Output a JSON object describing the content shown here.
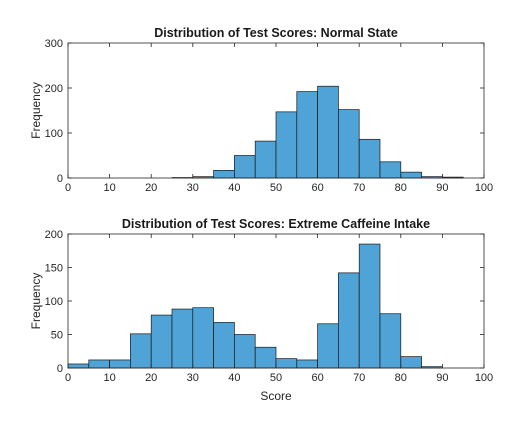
{
  "chart_data": [
    {
      "type": "bar",
      "title": "Distribution of Test Scores: Normal State",
      "xlabel": "",
      "ylabel": "Frequency",
      "xlim": [
        0,
        100
      ],
      "ylim": [
        0,
        300
      ],
      "xticks": [
        "0",
        "10",
        "20",
        "30",
        "40",
        "50",
        "60",
        "70",
        "80",
        "90",
        "100"
      ],
      "yticks": [
        "0",
        "100",
        "200",
        "300"
      ],
      "bin_width": 5,
      "bin_edges": [
        25,
        30,
        35,
        40,
        45,
        50,
        55,
        60,
        65,
        70,
        75,
        80,
        85,
        90,
        95
      ],
      "values": [
        1,
        3,
        17,
        50,
        82,
        147,
        192,
        204,
        152,
        86,
        36,
        13,
        3,
        2
      ],
      "grid": false,
      "bar_color": "#4fa3d6"
    },
    {
      "type": "bar",
      "title": "Distribution of Test Scores: Extreme Caffeine Intake",
      "xlabel": "Score",
      "ylabel": "Frequency",
      "xlim": [
        0,
        100
      ],
      "ylim": [
        0,
        200
      ],
      "xticks": [
        "0",
        "10",
        "20",
        "30",
        "40",
        "50",
        "60",
        "70",
        "80",
        "90",
        "100"
      ],
      "yticks": [
        "0",
        "50",
        "100",
        "150",
        "200"
      ],
      "bin_width": 5,
      "bin_edges": [
        0,
        5,
        10,
        15,
        20,
        25,
        30,
        35,
        40,
        45,
        50,
        55,
        60,
        65,
        70,
        75,
        80,
        85,
        90
      ],
      "values": [
        6,
        12,
        12,
        51,
        79,
        88,
        90,
        68,
        50,
        31,
        14,
        12,
        66,
        142,
        185,
        81,
        17,
        2
      ],
      "grid": false,
      "bar_color": "#4fa3d6"
    }
  ]
}
